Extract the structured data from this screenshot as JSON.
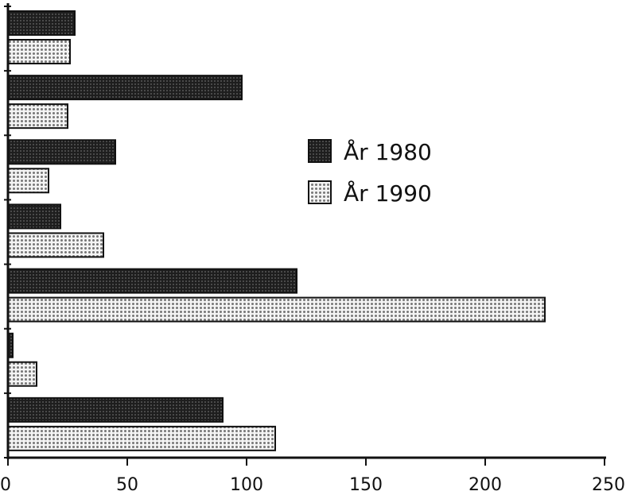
{
  "chart_data": {
    "type": "bar",
    "orientation": "horizontal",
    "title": "",
    "xlabel": "",
    "ylabel": "",
    "categories": [
      "",
      "",
      "",
      "",
      "",
      "",
      ""
    ],
    "series": [
      {
        "name": "År 1980",
        "values": [
          28,
          98,
          45,
          22,
          121,
          2,
          90
        ],
        "color": "#2a2a2a"
      },
      {
        "name": "År 1990",
        "values": [
          26,
          25,
          17,
          40,
          225,
          12,
          112
        ],
        "color": "#c8c8c8"
      }
    ],
    "xlim": [
      0,
      250
    ],
    "xticks": [
      "0",
      "50",
      "100",
      "150",
      "200",
      "250"
    ],
    "grid": false,
    "legend_position": "center-right"
  }
}
